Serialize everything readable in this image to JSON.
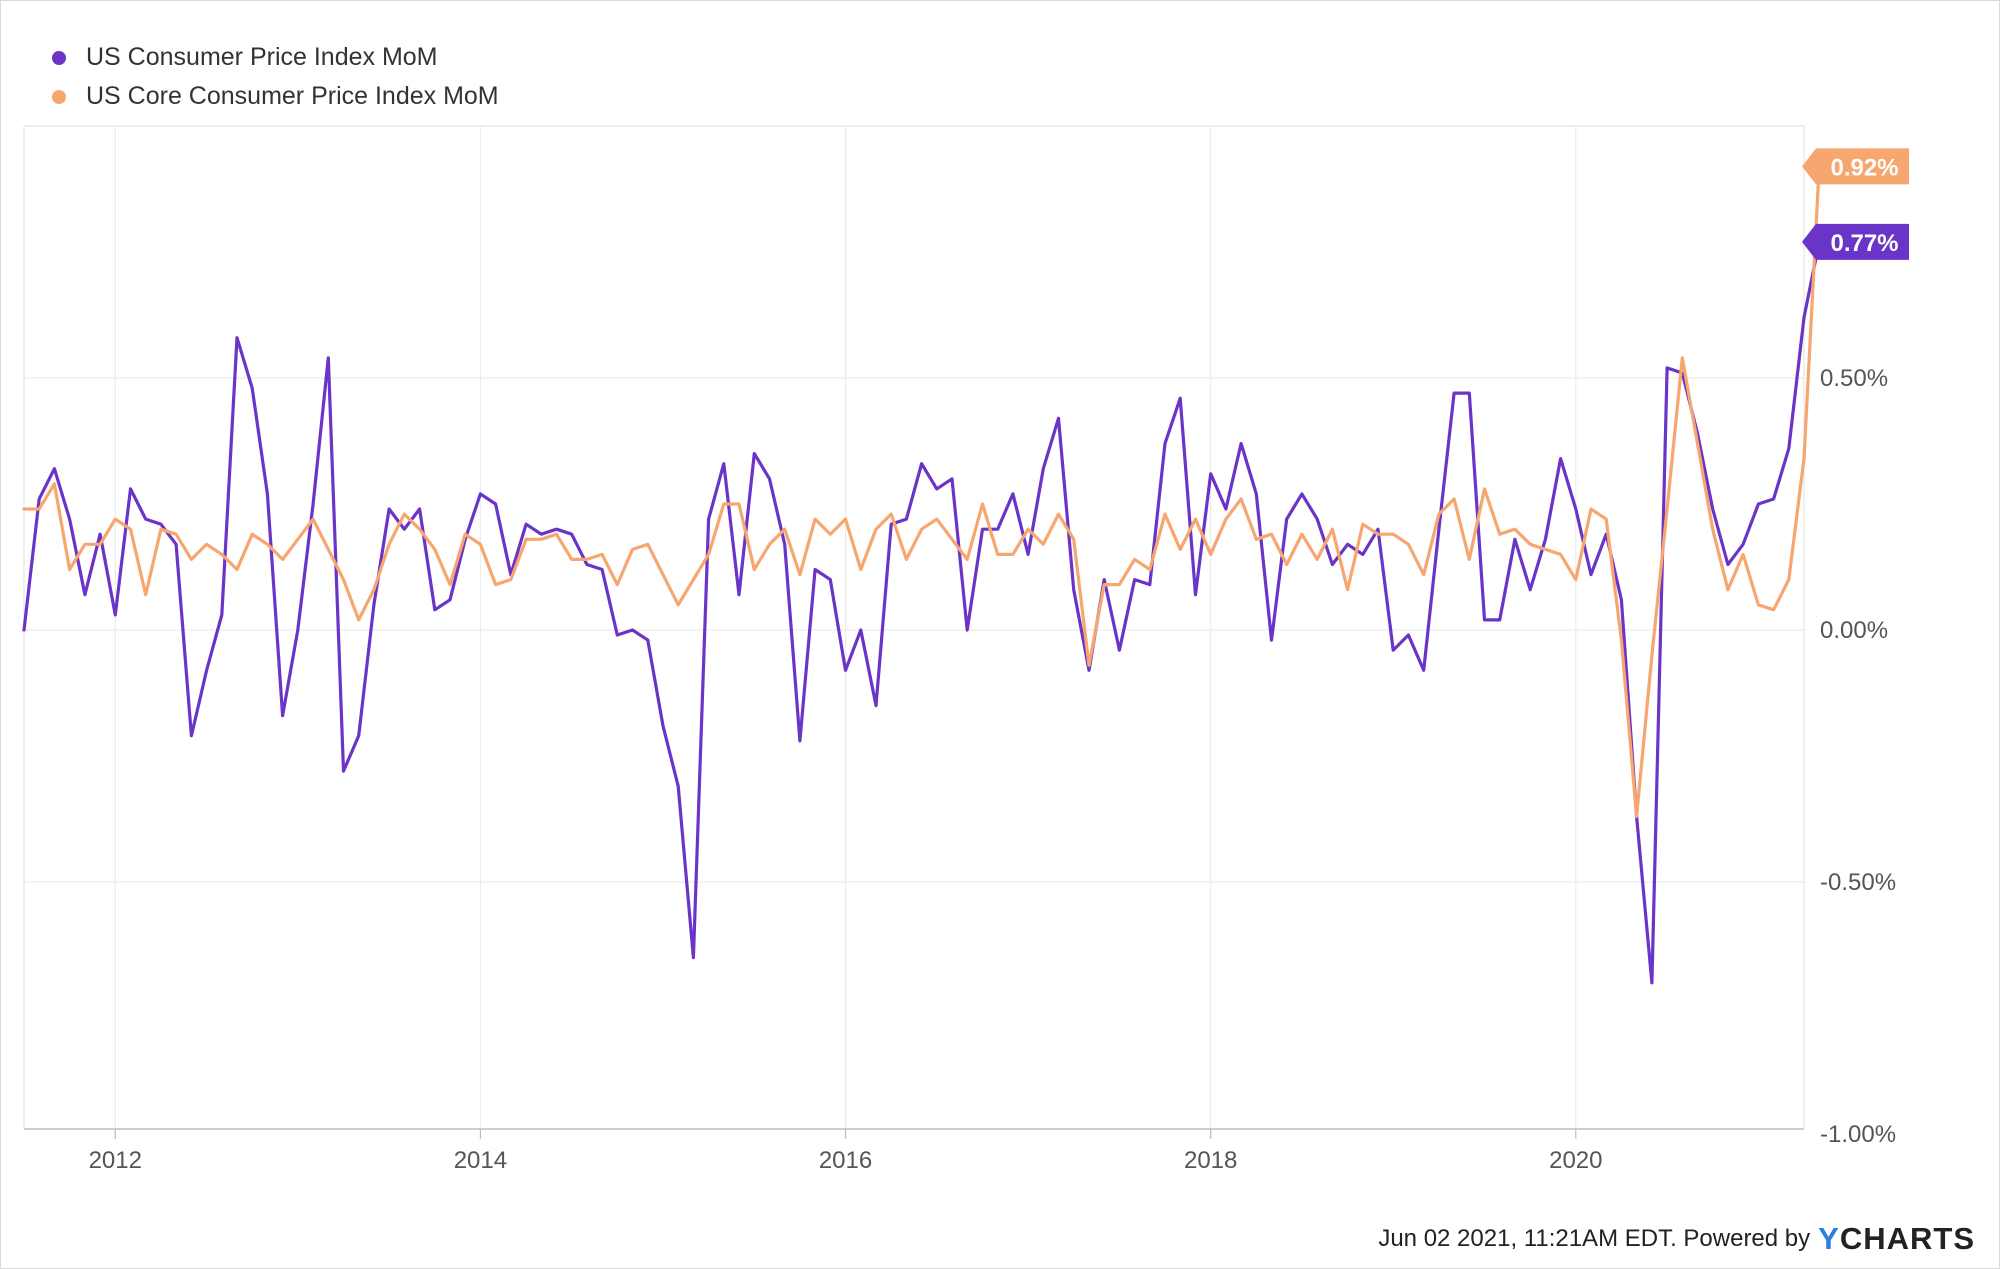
{
  "legend": {
    "items": [
      {
        "label": "US Consumer Price Index MoM",
        "color": "#6a34c9"
      },
      {
        "label": "US Core Consumer Price Index MoM",
        "color": "#f6a66e"
      }
    ]
  },
  "footer": {
    "text": "Jun 02 2021, 11:21AM EDT. Powered by",
    "logo_y": "Y",
    "logo_rest": "CHARTS"
  },
  "chart_data": {
    "type": "line",
    "x_ticks": [
      "2012",
      "2014",
      "2016",
      "2018",
      "2020"
    ],
    "y_ticks": [
      "0.50%",
      "0.00%",
      "-0.50%",
      "-1.00%"
    ],
    "y_tick_values": [
      0.5,
      0.0,
      -0.5,
      -1.0
    ],
    "ylim": [
      -1.0,
      1.0
    ],
    "x_range": [
      "2011-07",
      "2021-04"
    ],
    "grid": true,
    "legend_position": "top-left",
    "series": [
      {
        "name": "US Consumer Price Index MoM",
        "color": "#6a34c9",
        "end_label": "0.77%",
        "start": "2011-07",
        "values": [
          0.0,
          0.26,
          0.32,
          0.22,
          0.07,
          0.19,
          0.03,
          0.28,
          0.22,
          0.21,
          0.17,
          -0.21,
          -0.08,
          0.03,
          0.58,
          0.48,
          0.27,
          -0.17,
          0.0,
          0.25,
          0.54,
          -0.28,
          -0.21,
          0.05,
          0.24,
          0.2,
          0.24,
          0.04,
          0.06,
          0.18,
          0.27,
          0.25,
          0.11,
          0.21,
          0.19,
          0.2,
          0.19,
          0.13,
          0.12,
          -0.01,
          0.0,
          -0.02,
          -0.19,
          -0.31,
          -0.65,
          0.22,
          0.33,
          0.07,
          0.35,
          0.3,
          0.17,
          -0.22,
          0.12,
          0.1,
          -0.08,
          0.0,
          -0.15,
          0.21,
          0.22,
          0.33,
          0.28,
          0.3,
          0.0,
          0.2,
          0.2,
          0.27,
          0.15,
          0.32,
          0.42,
          0.08,
          -0.08,
          0.1,
          -0.04,
          0.1,
          0.09,
          0.37,
          0.46,
          0.07,
          0.31,
          0.24,
          0.37,
          0.27,
          -0.02,
          0.22,
          0.27,
          0.22,
          0.13,
          0.17,
          0.15,
          0.2,
          -0.04,
          -0.01,
          -0.08,
          0.2,
          0.47,
          0.47,
          0.02,
          0.02,
          0.18,
          0.08,
          0.18,
          0.34,
          0.24,
          0.11,
          0.19,
          0.06,
          -0.37,
          -0.7,
          0.52,
          0.51,
          0.39,
          0.24,
          0.13,
          0.17,
          0.25,
          0.26,
          0.36,
          0.62,
          0.77
        ]
      },
      {
        "name": "US Core Consumer Price Index MoM",
        "color": "#f6a66e",
        "end_label": "0.92%",
        "start": "2011-07",
        "values": [
          0.24,
          0.24,
          0.29,
          0.12,
          0.17,
          0.17,
          0.22,
          0.2,
          0.07,
          0.2,
          0.19,
          0.14,
          0.17,
          0.15,
          0.12,
          0.19,
          0.17,
          0.14,
          0.18,
          0.22,
          0.16,
          0.1,
          0.02,
          0.08,
          0.17,
          0.23,
          0.2,
          0.16,
          0.09,
          0.19,
          0.17,
          0.09,
          0.1,
          0.18,
          0.18,
          0.19,
          0.14,
          0.14,
          0.15,
          0.09,
          0.16,
          0.17,
          0.11,
          0.05,
          0.1,
          0.15,
          0.25,
          0.25,
          0.12,
          0.17,
          0.2,
          0.11,
          0.22,
          0.19,
          0.22,
          0.12,
          0.2,
          0.23,
          0.14,
          0.2,
          0.22,
          0.18,
          0.14,
          0.25,
          0.15,
          0.15,
          0.2,
          0.17,
          0.23,
          0.18,
          -0.07,
          0.09,
          0.09,
          0.14,
          0.12,
          0.23,
          0.16,
          0.22,
          0.15,
          0.22,
          0.26,
          0.18,
          0.19,
          0.13,
          0.19,
          0.14,
          0.2,
          0.08,
          0.21,
          0.19,
          0.19,
          0.17,
          0.11,
          0.23,
          0.26,
          0.14,
          0.28,
          0.19,
          0.2,
          0.17,
          0.16,
          0.15,
          0.1,
          0.24,
          0.22,
          -0.02,
          -0.37,
          -0.05,
          0.24,
          0.54,
          0.37,
          0.2,
          0.08,
          0.15,
          0.05,
          0.04,
          0.1,
          0.34,
          0.92
        ]
      }
    ]
  }
}
